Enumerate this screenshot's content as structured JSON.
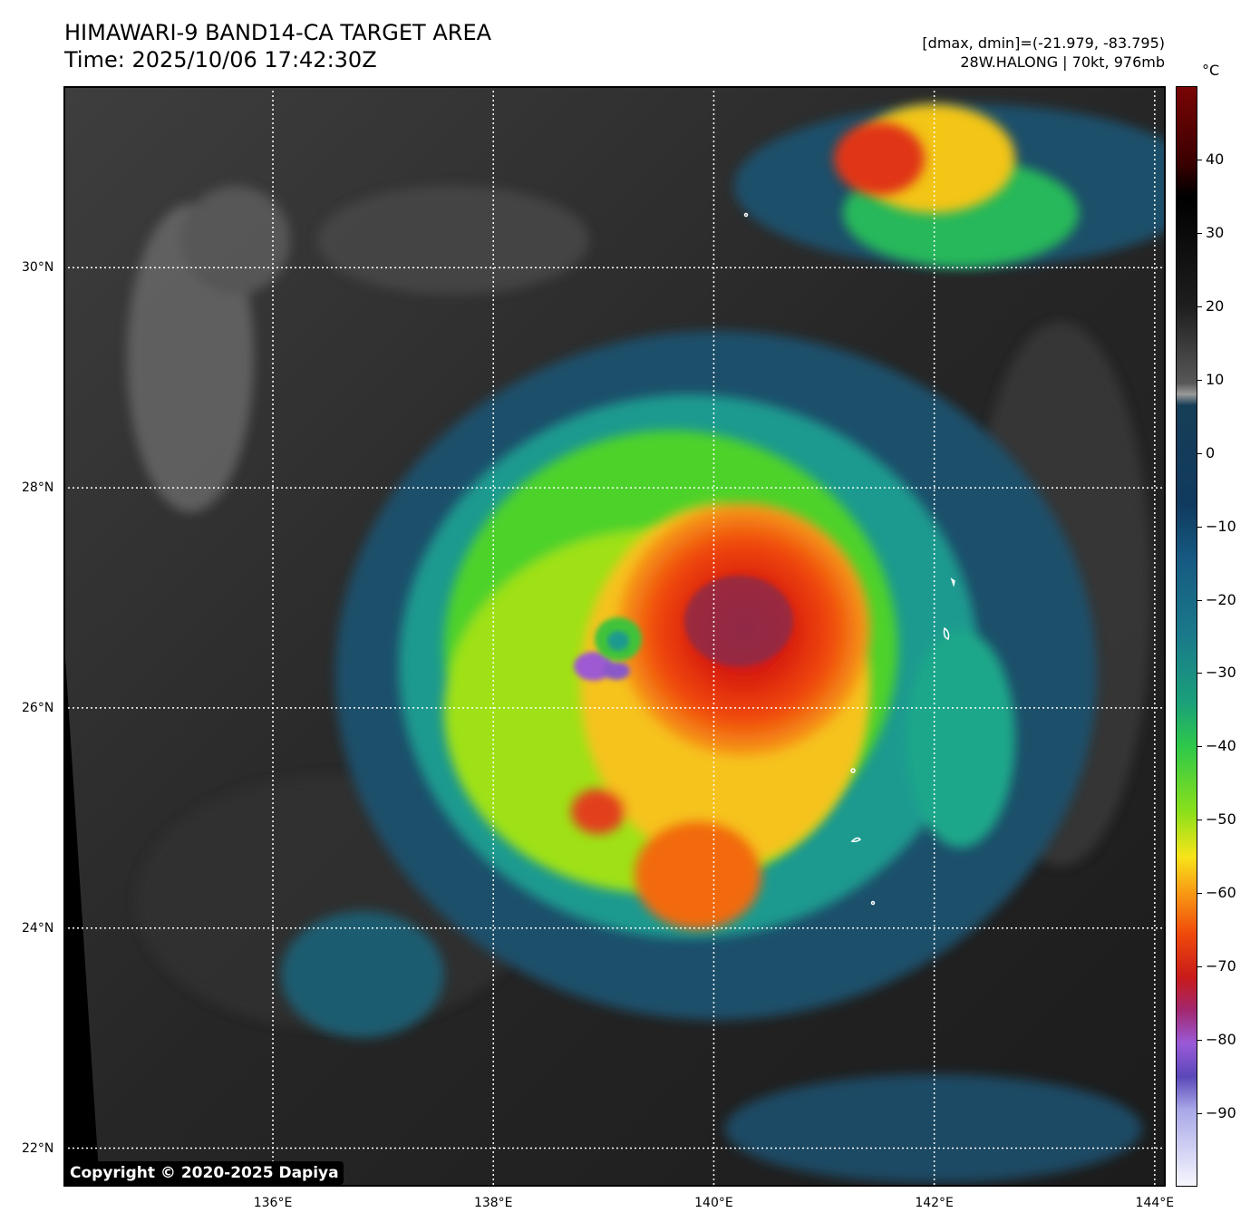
{
  "header": {
    "title": "HIMAWARI-9 BAND14-CA TARGET AREA",
    "time": "Time: 2025/10/06 17:42:30Z",
    "range_text": "[dmax, dmin]=(-21.979, -83.795)",
    "storm_text": "28W.HALONG | 70kt, 976mb"
  },
  "map": {
    "copyright": "Copyright © 2020-2025 Dapiya",
    "lat_labels": [
      {
        "label": "30°N",
        "value": 30
      },
      {
        "label": "28°N",
        "value": 28
      },
      {
        "label": "26°N",
        "value": 26
      },
      {
        "label": "24°N",
        "value": 24
      },
      {
        "label": "22°N",
        "value": 22
      }
    ],
    "lon_labels": [
      {
        "label": "136°E",
        "value": 136
      },
      {
        "label": "138°E",
        "value": 138
      },
      {
        "label": "140°E",
        "value": 140
      },
      {
        "label": "142°E",
        "value": 142
      },
      {
        "label": "144°E",
        "value": 144
      }
    ],
    "lon_range": [
      134.1,
      144.1
    ],
    "lat_range": [
      21.65,
      31.65
    ],
    "storm_center": {
      "lon": 139.2,
      "lat": 26.6
    }
  },
  "colorbar": {
    "unit": "°C",
    "ticks": [
      40,
      30,
      20,
      10,
      0,
      -10,
      -20,
      -30,
      -40,
      -50,
      -60,
      -70,
      -80,
      -90
    ],
    "range": [
      -100,
      50
    ]
  }
}
